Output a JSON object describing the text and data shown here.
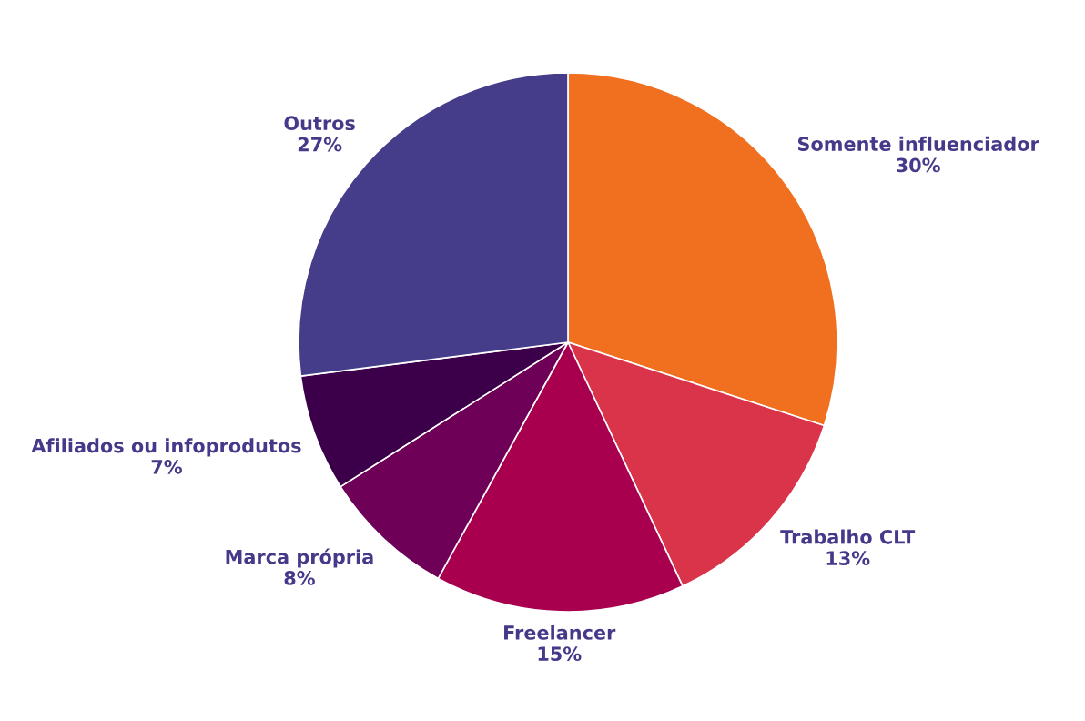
{
  "chart_data": {
    "type": "pie",
    "categories": [
      "Somente influenciador",
      "Trabalho CLT",
      "Freelancer",
      "Marca própria",
      "Afiliados ou infoprodutos",
      "Outros"
    ],
    "values": [
      30,
      13,
      15,
      8,
      7,
      27
    ],
    "value_labels": [
      "30%",
      "13%",
      "15%",
      "8%",
      "7%",
      "27%"
    ],
    "colors": [
      "#f07020",
      "#d9344a",
      "#a8004f",
      "#6e0058",
      "#3b0049",
      "#463d8a"
    ]
  }
}
